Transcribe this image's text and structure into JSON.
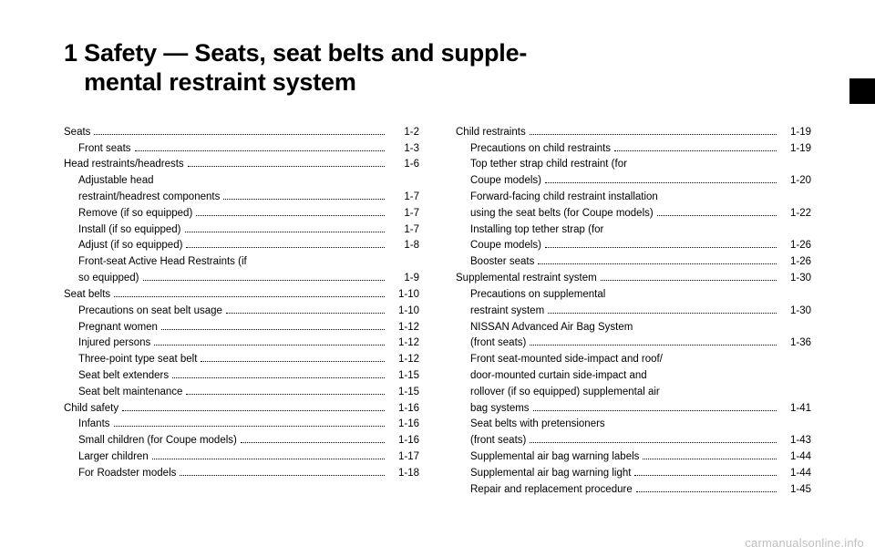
{
  "chapter_number": "1",
  "chapter_title_line1": "Safety — Seats, seat belts and supple-",
  "chapter_title_line2": "mental restraint system",
  "watermark": "carmanualsonline.info",
  "left": [
    {
      "label": "Seats",
      "page": "1-2",
      "indent": 0
    },
    {
      "label": "Front seats",
      "page": "1-3",
      "indent": 1
    },
    {
      "label": "Head restraints/headrests",
      "page": "1-6",
      "indent": 0
    },
    {
      "lines": [
        "Adjustable head",
        "restraint/headrest components"
      ],
      "page": "1-7",
      "indent": 1
    },
    {
      "label": "Remove (if so equipped)",
      "page": "1-7",
      "indent": 1
    },
    {
      "label": "Install (if so equipped)",
      "page": "1-7",
      "indent": 1
    },
    {
      "label": "Adjust (if so equipped)",
      "page": "1-8",
      "indent": 1
    },
    {
      "lines": [
        "Front-seat Active Head Restraints (if",
        "so equipped)"
      ],
      "page": "1-9",
      "indent": 1
    },
    {
      "label": "Seat belts",
      "page": "1-10",
      "indent": 0
    },
    {
      "label": "Precautions on seat belt usage",
      "page": "1-10",
      "indent": 1
    },
    {
      "label": "Pregnant women",
      "page": "1-12",
      "indent": 1
    },
    {
      "label": "Injured persons",
      "page": "1-12",
      "indent": 1
    },
    {
      "label": "Three-point type seat belt",
      "page": "1-12",
      "indent": 1
    },
    {
      "label": "Seat belt extenders",
      "page": "1-15",
      "indent": 1
    },
    {
      "label": "Seat belt maintenance",
      "page": "1-15",
      "indent": 1
    },
    {
      "label": "Child safety",
      "page": "1-16",
      "indent": 0
    },
    {
      "label": "Infants",
      "page": "1-16",
      "indent": 1
    },
    {
      "label": "Small children (for Coupe models)",
      "page": "1-16",
      "indent": 1
    },
    {
      "label": "Larger children",
      "page": "1-17",
      "indent": 1
    },
    {
      "label": "For Roadster models",
      "page": "1-18",
      "indent": 1
    }
  ],
  "right": [
    {
      "label": "Child restraints",
      "page": "1-19",
      "indent": 0
    },
    {
      "label": "Precautions on child restraints",
      "page": "1-19",
      "indent": 1
    },
    {
      "lines": [
        "Top tether strap child restraint (for",
        "Coupe models)"
      ],
      "page": "1-20",
      "indent": 1
    },
    {
      "lines": [
        "Forward-facing child restraint installation",
        "using the seat belts (for Coupe models)"
      ],
      "page": "1-22",
      "indent": 1
    },
    {
      "lines": [
        "Installing top tether strap (for",
        "Coupe models)"
      ],
      "page": "1-26",
      "indent": 1
    },
    {
      "label": "Booster seats",
      "page": "1-26",
      "indent": 1
    },
    {
      "label": "Supplemental restraint system",
      "page": "1-30",
      "indent": 0
    },
    {
      "lines": [
        "Precautions on supplemental",
        "restraint system"
      ],
      "page": "1-30",
      "indent": 1
    },
    {
      "lines": [
        "NISSAN Advanced Air Bag System",
        "(front seats)"
      ],
      "page": "1-36",
      "indent": 1
    },
    {
      "lines": [
        "Front seat-mounted side-impact and roof/",
        "door-mounted curtain side-impact and",
        "rollover (if so equipped) supplemental air",
        "bag systems"
      ],
      "page": "1-41",
      "indent": 1
    },
    {
      "lines": [
        "Seat belts with pretensioners",
        "(front seats)"
      ],
      "page": "1-43",
      "indent": 1
    },
    {
      "label": "Supplemental air bag warning labels",
      "page": "1-44",
      "indent": 1
    },
    {
      "label": "Supplemental air bag warning light",
      "page": "1-44",
      "indent": 1
    },
    {
      "label": "Repair and replacement procedure",
      "page": "1-45",
      "indent": 1
    }
  ]
}
